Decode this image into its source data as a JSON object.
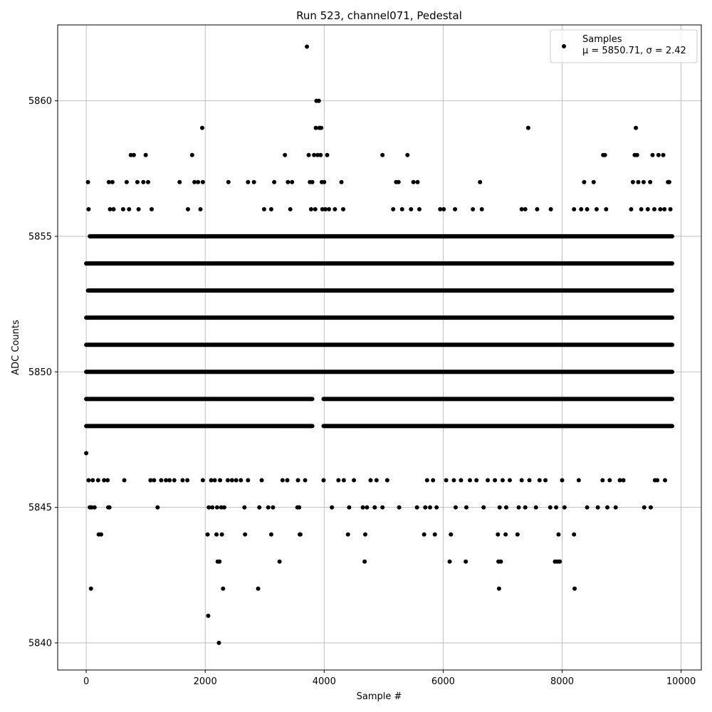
{
  "chart_data": {
    "type": "scatter",
    "title": "Run 523, channel071, Pedestal",
    "xlabel": "Sample #",
    "ylabel": "ADC Counts",
    "xlim": [
      -480,
      10340
    ],
    "ylim": [
      5839,
      5862.8
    ],
    "xticks": [
      0,
      2000,
      4000,
      6000,
      8000,
      10000
    ],
    "yticks": [
      5840,
      5845,
      5850,
      5855,
      5860
    ],
    "grid": true,
    "legend_position": "top-right",
    "series": [
      {
        "name": "Samples",
        "stats_label": "μ = 5850.71, σ = 2.42",
        "mean": 5850.71,
        "sigma": 2.42,
        "marker": "circle",
        "color": "#000000",
        "n_samples": 9850,
        "level_bands": [
          {
            "y": 5848,
            "segments": [
              [
                0,
                3800
              ],
              [
                3990,
                9850
              ]
            ]
          },
          {
            "y": 5849,
            "segments": [
              [
                0,
                3800
              ],
              [
                3990,
                9850
              ]
            ]
          },
          {
            "y": 5850,
            "segments": [
              [
                0,
                9850
              ]
            ]
          },
          {
            "y": 5851,
            "segments": [
              [
                0,
                9850
              ]
            ]
          },
          {
            "y": 5852,
            "segments": [
              [
                0,
                9850
              ]
            ]
          },
          {
            "y": 5853,
            "segments": [
              [
                30,
                9850
              ]
            ]
          },
          {
            "y": 5854,
            "segments": [
              [
                0,
                9850
              ]
            ]
          },
          {
            "y": 5855,
            "segments": [
              [
                60,
                9850
              ]
            ]
          }
        ],
        "points": [
          {
            "x": 30,
            "y": 5857
          },
          {
            "x": 40,
            "y": 5856
          },
          {
            "x": 70,
            "y": 5855
          },
          {
            "x": 60,
            "y": 5853
          },
          {
            "x": 380,
            "y": 5857
          },
          {
            "x": 440,
            "y": 5857
          },
          {
            "x": 400,
            "y": 5856
          },
          {
            "x": 460,
            "y": 5856
          },
          {
            "x": 620,
            "y": 5856
          },
          {
            "x": 680,
            "y": 5857
          },
          {
            "x": 720,
            "y": 5856
          },
          {
            "x": 750,
            "y": 5858
          },
          {
            "x": 800,
            "y": 5858
          },
          {
            "x": 860,
            "y": 5857
          },
          {
            "x": 880,
            "y": 5856
          },
          {
            "x": 960,
            "y": 5857
          },
          {
            "x": 1000,
            "y": 5858
          },
          {
            "x": 1040,
            "y": 5857
          },
          {
            "x": 1100,
            "y": 5856
          },
          {
            "x": 1570,
            "y": 5857
          },
          {
            "x": 1710,
            "y": 5856
          },
          {
            "x": 1780,
            "y": 5858
          },
          {
            "x": 1820,
            "y": 5857
          },
          {
            "x": 1880,
            "y": 5857
          },
          {
            "x": 1920,
            "y": 5856
          },
          {
            "x": 1950,
            "y": 5859
          },
          {
            "x": 1960,
            "y": 5857
          },
          {
            "x": 2390,
            "y": 5857
          },
          {
            "x": 2720,
            "y": 5857
          },
          {
            "x": 2820,
            "y": 5857
          },
          {
            "x": 2990,
            "y": 5856
          },
          {
            "x": 3110,
            "y": 5856
          },
          {
            "x": 3160,
            "y": 5857
          },
          {
            "x": 3340,
            "y": 5858
          },
          {
            "x": 3390,
            "y": 5857
          },
          {
            "x": 3430,
            "y": 5856
          },
          {
            "x": 3460,
            "y": 5857
          },
          {
            "x": 3710,
            "y": 5862
          },
          {
            "x": 3740,
            "y": 5858
          },
          {
            "x": 3760,
            "y": 5857
          },
          {
            "x": 3780,
            "y": 5856
          },
          {
            "x": 3800,
            "y": 5857
          },
          {
            "x": 3830,
            "y": 5858
          },
          {
            "x": 3850,
            "y": 5856
          },
          {
            "x": 3860,
            "y": 5859
          },
          {
            "x": 3870,
            "y": 5860
          },
          {
            "x": 3890,
            "y": 5858
          },
          {
            "x": 3910,
            "y": 5860
          },
          {
            "x": 3920,
            "y": 5859
          },
          {
            "x": 3940,
            "y": 5858
          },
          {
            "x": 3950,
            "y": 5859
          },
          {
            "x": 3960,
            "y": 5857
          },
          {
            "x": 3970,
            "y": 5856
          },
          {
            "x": 4000,
            "y": 5857
          },
          {
            "x": 4020,
            "y": 5856
          },
          {
            "x": 4050,
            "y": 5858
          },
          {
            "x": 4080,
            "y": 5856
          },
          {
            "x": 4180,
            "y": 5856
          },
          {
            "x": 4290,
            "y": 5857
          },
          {
            "x": 4320,
            "y": 5856
          },
          {
            "x": 4980,
            "y": 5858
          },
          {
            "x": 5160,
            "y": 5856
          },
          {
            "x": 5210,
            "y": 5857
          },
          {
            "x": 5250,
            "y": 5857
          },
          {
            "x": 5310,
            "y": 5856
          },
          {
            "x": 5400,
            "y": 5858
          },
          {
            "x": 5460,
            "y": 5856
          },
          {
            "x": 5500,
            "y": 5857
          },
          {
            "x": 5570,
            "y": 5857
          },
          {
            "x": 5600,
            "y": 5856
          },
          {
            "x": 5950,
            "y": 5856
          },
          {
            "x": 6010,
            "y": 5856
          },
          {
            "x": 6200,
            "y": 5856
          },
          {
            "x": 6500,
            "y": 5856
          },
          {
            "x": 6620,
            "y": 5857
          },
          {
            "x": 6650,
            "y": 5856
          },
          {
            "x": 7320,
            "y": 5856
          },
          {
            "x": 7380,
            "y": 5856
          },
          {
            "x": 7430,
            "y": 5859
          },
          {
            "x": 7580,
            "y": 5856
          },
          {
            "x": 7810,
            "y": 5856
          },
          {
            "x": 8200,
            "y": 5856
          },
          {
            "x": 8320,
            "y": 5856
          },
          {
            "x": 8370,
            "y": 5857
          },
          {
            "x": 8420,
            "y": 5856
          },
          {
            "x": 8530,
            "y": 5857
          },
          {
            "x": 8580,
            "y": 5856
          },
          {
            "x": 8690,
            "y": 5858
          },
          {
            "x": 8720,
            "y": 5858
          },
          {
            "x": 8740,
            "y": 5856
          },
          {
            "x": 9160,
            "y": 5856
          },
          {
            "x": 9190,
            "y": 5857
          },
          {
            "x": 9220,
            "y": 5858
          },
          {
            "x": 9240,
            "y": 5859
          },
          {
            "x": 9260,
            "y": 5858
          },
          {
            "x": 9280,
            "y": 5857
          },
          {
            "x": 9330,
            "y": 5856
          },
          {
            "x": 9370,
            "y": 5857
          },
          {
            "x": 9440,
            "y": 5856
          },
          {
            "x": 9480,
            "y": 5857
          },
          {
            "x": 9520,
            "y": 5858
          },
          {
            "x": 9550,
            "y": 5856
          },
          {
            "x": 9620,
            "y": 5858
          },
          {
            "x": 9650,
            "y": 5856
          },
          {
            "x": 9700,
            "y": 5858
          },
          {
            "x": 9720,
            "y": 5856
          },
          {
            "x": 9780,
            "y": 5857
          },
          {
            "x": 9800,
            "y": 5857
          },
          {
            "x": 9820,
            "y": 5856
          },
          {
            "x": 0,
            "y": 5847
          },
          {
            "x": 40,
            "y": 5846
          },
          {
            "x": 60,
            "y": 5845
          },
          {
            "x": 80,
            "y": 5842
          },
          {
            "x": 90,
            "y": 5845
          },
          {
            "x": 110,
            "y": 5846
          },
          {
            "x": 140,
            "y": 5845
          },
          {
            "x": 200,
            "y": 5846
          },
          {
            "x": 210,
            "y": 5844
          },
          {
            "x": 250,
            "y": 5844
          },
          {
            "x": 300,
            "y": 5846
          },
          {
            "x": 360,
            "y": 5846
          },
          {
            "x": 370,
            "y": 5845
          },
          {
            "x": 390,
            "y": 5845
          },
          {
            "x": 640,
            "y": 5846
          },
          {
            "x": 1080,
            "y": 5846
          },
          {
            "x": 1140,
            "y": 5846
          },
          {
            "x": 1200,
            "y": 5845
          },
          {
            "x": 1260,
            "y": 5846
          },
          {
            "x": 1340,
            "y": 5846
          },
          {
            "x": 1400,
            "y": 5846
          },
          {
            "x": 1480,
            "y": 5846
          },
          {
            "x": 1620,
            "y": 5846
          },
          {
            "x": 1700,
            "y": 5846
          },
          {
            "x": 1960,
            "y": 5846
          },
          {
            "x": 2040,
            "y": 5844
          },
          {
            "x": 2050,
            "y": 5841
          },
          {
            "x": 2060,
            "y": 5845
          },
          {
            "x": 2100,
            "y": 5846
          },
          {
            "x": 2120,
            "y": 5845
          },
          {
            "x": 2160,
            "y": 5846
          },
          {
            "x": 2190,
            "y": 5844
          },
          {
            "x": 2200,
            "y": 5845
          },
          {
            "x": 2210,
            "y": 5843
          },
          {
            "x": 2230,
            "y": 5840
          },
          {
            "x": 2240,
            "y": 5843
          },
          {
            "x": 2250,
            "y": 5846
          },
          {
            "x": 2270,
            "y": 5845
          },
          {
            "x": 2280,
            "y": 5844
          },
          {
            "x": 2300,
            "y": 5842
          },
          {
            "x": 2320,
            "y": 5845
          },
          {
            "x": 2380,
            "y": 5846
          },
          {
            "x": 2450,
            "y": 5846
          },
          {
            "x": 2520,
            "y": 5846
          },
          {
            "x": 2600,
            "y": 5846
          },
          {
            "x": 2660,
            "y": 5845
          },
          {
            "x": 2670,
            "y": 5844
          },
          {
            "x": 2720,
            "y": 5846
          },
          {
            "x": 2890,
            "y": 5842
          },
          {
            "x": 2910,
            "y": 5845
          },
          {
            "x": 2950,
            "y": 5846
          },
          {
            "x": 3060,
            "y": 5845
          },
          {
            "x": 3110,
            "y": 5844
          },
          {
            "x": 3140,
            "y": 5845
          },
          {
            "x": 3250,
            "y": 5843
          },
          {
            "x": 3300,
            "y": 5846
          },
          {
            "x": 3380,
            "y": 5846
          },
          {
            "x": 3550,
            "y": 5845
          },
          {
            "x": 3560,
            "y": 5846
          },
          {
            "x": 3580,
            "y": 5845
          },
          {
            "x": 3590,
            "y": 5844
          },
          {
            "x": 3600,
            "y": 5844
          },
          {
            "x": 3680,
            "y": 5846
          },
          {
            "x": 3990,
            "y": 5846
          },
          {
            "x": 4130,
            "y": 5845
          },
          {
            "x": 4240,
            "y": 5846
          },
          {
            "x": 4330,
            "y": 5846
          },
          {
            "x": 4400,
            "y": 5844
          },
          {
            "x": 4420,
            "y": 5845
          },
          {
            "x": 4500,
            "y": 5846
          },
          {
            "x": 4650,
            "y": 5845
          },
          {
            "x": 4680,
            "y": 5843
          },
          {
            "x": 4690,
            "y": 5844
          },
          {
            "x": 4720,
            "y": 5845
          },
          {
            "x": 4780,
            "y": 5846
          },
          {
            "x": 4850,
            "y": 5845
          },
          {
            "x": 4880,
            "y": 5846
          },
          {
            "x": 4980,
            "y": 5845
          },
          {
            "x": 5060,
            "y": 5846
          },
          {
            "x": 5260,
            "y": 5845
          },
          {
            "x": 5560,
            "y": 5845
          },
          {
            "x": 5680,
            "y": 5844
          },
          {
            "x": 5700,
            "y": 5845
          },
          {
            "x": 5730,
            "y": 5846
          },
          {
            "x": 5780,
            "y": 5845
          },
          {
            "x": 5830,
            "y": 5846
          },
          {
            "x": 5860,
            "y": 5844
          },
          {
            "x": 5890,
            "y": 5845
          },
          {
            "x": 6050,
            "y": 5846
          },
          {
            "x": 6110,
            "y": 5843
          },
          {
            "x": 6130,
            "y": 5844
          },
          {
            "x": 6180,
            "y": 5846
          },
          {
            "x": 6210,
            "y": 5845
          },
          {
            "x": 6300,
            "y": 5846
          },
          {
            "x": 6380,
            "y": 5843
          },
          {
            "x": 6390,
            "y": 5845
          },
          {
            "x": 6450,
            "y": 5846
          },
          {
            "x": 6560,
            "y": 5846
          },
          {
            "x": 6680,
            "y": 5845
          },
          {
            "x": 6750,
            "y": 5846
          },
          {
            "x": 6870,
            "y": 5846
          },
          {
            "x": 6920,
            "y": 5844
          },
          {
            "x": 6930,
            "y": 5843
          },
          {
            "x": 6940,
            "y": 5842
          },
          {
            "x": 6950,
            "y": 5845
          },
          {
            "x": 6970,
            "y": 5843
          },
          {
            "x": 7000,
            "y": 5846
          },
          {
            "x": 7050,
            "y": 5844
          },
          {
            "x": 7060,
            "y": 5845
          },
          {
            "x": 7120,
            "y": 5846
          },
          {
            "x": 7250,
            "y": 5844
          },
          {
            "x": 7270,
            "y": 5845
          },
          {
            "x": 7320,
            "y": 5846
          },
          {
            "x": 7380,
            "y": 5845
          },
          {
            "x": 7450,
            "y": 5846
          },
          {
            "x": 7560,
            "y": 5845
          },
          {
            "x": 7620,
            "y": 5846
          },
          {
            "x": 7720,
            "y": 5846
          },
          {
            "x": 7800,
            "y": 5845
          },
          {
            "x": 7880,
            "y": 5843
          },
          {
            "x": 7900,
            "y": 5845
          },
          {
            "x": 7920,
            "y": 5843
          },
          {
            "x": 7940,
            "y": 5844
          },
          {
            "x": 7960,
            "y": 5843
          },
          {
            "x": 8000,
            "y": 5846
          },
          {
            "x": 8040,
            "y": 5845
          },
          {
            "x": 8200,
            "y": 5844
          },
          {
            "x": 8210,
            "y": 5842
          },
          {
            "x": 8280,
            "y": 5846
          },
          {
            "x": 8420,
            "y": 5845
          },
          {
            "x": 8600,
            "y": 5845
          },
          {
            "x": 8680,
            "y": 5846
          },
          {
            "x": 8760,
            "y": 5845
          },
          {
            "x": 8800,
            "y": 5846
          },
          {
            "x": 8900,
            "y": 5845
          },
          {
            "x": 8970,
            "y": 5846
          },
          {
            "x": 9030,
            "y": 5846
          },
          {
            "x": 9380,
            "y": 5845
          },
          {
            "x": 9490,
            "y": 5845
          },
          {
            "x": 9560,
            "y": 5846
          },
          {
            "x": 9600,
            "y": 5846
          },
          {
            "x": 9730,
            "y": 5846
          }
        ]
      }
    ]
  }
}
